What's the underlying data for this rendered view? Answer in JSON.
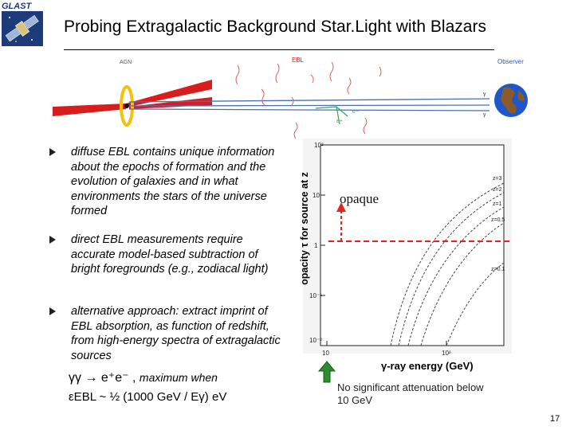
{
  "title": "Probing Extragalactic Background Star.Light with Blazars",
  "logo_text": "GLAST",
  "diagram": {
    "agn_label": "AGN",
    "ebl_label": "EBL",
    "observer_label": "Observer",
    "gamma_label": "γ",
    "electron_label": "e−",
    "positron_label": "e+"
  },
  "bullets": [
    "diffuse EBL contains unique information about the epochs of formation and the evolution of galaxies and in what environments the stars of the universe formed",
    "direct EBL measurements require accurate model-based subtraction of bright foregrounds (e.g., zodiacal light)",
    "alternative approach:  extract imprint of EBL absorption, as function of redshift, from high-energy spectra of extragalactic sources"
  ],
  "formula": {
    "line1_main": "γγ → e⁺e⁻ ,",
    "line1_tail": "maximum when",
    "line2": "εEBL ~ ½ (1000 GeV / Eγ) eV"
  },
  "plot": {
    "y_axis_label": "opacity τ for source at z",
    "x_axis_label": "γ-ray energy (GeV)",
    "y_ticks": [
      "10²",
      "10",
      "1",
      "10⁻¹",
      "10⁻²"
    ],
    "x_ticks": [
      "10",
      "10²"
    ],
    "curve_labels": [
      "z=3",
      "z=2",
      "z=1",
      "z=0.5",
      "z=0.1"
    ],
    "opaque_label": "opaque",
    "colors": {
      "threshold_line": "#e8211c",
      "arrow_green": "#2e8b2e"
    }
  },
  "note": "No significant attenuation below 10 GeV",
  "page_number": "17"
}
